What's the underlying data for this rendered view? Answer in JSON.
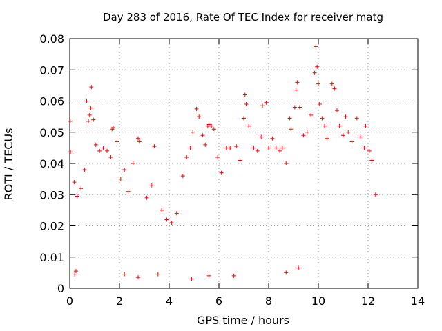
{
  "chart_data": {
    "type": "scatter",
    "title": "Day 283 of 2016, Rate Of TEC Index for receiver matg",
    "xlabel": "GPS time / hours",
    "ylabel": "ROTI / TECUs",
    "xlim": [
      0,
      14
    ],
    "ylim": [
      0,
      0.08
    ],
    "xticks": [
      0,
      2,
      4,
      6,
      8,
      10,
      12,
      14
    ],
    "xtick_labels": [
      "0",
      "2",
      "4",
      "6",
      "8",
      "10",
      "12",
      "14"
    ],
    "yticks": [
      0,
      0.01,
      0.02,
      0.03,
      0.04,
      0.05,
      0.06,
      0.07,
      0.08
    ],
    "ytick_labels": [
      "0",
      "0.01",
      "0.02",
      "0.03",
      "0.04",
      "0.05",
      "0.06",
      "0.07",
      "0.08"
    ],
    "grid": true,
    "marker": "+",
    "series": [
      {
        "name": "ROTI",
        "color": "#ff0000",
        "points": [
          [
            0.02,
            0.0535
          ],
          [
            0.03,
            0.0437
          ],
          [
            0.18,
            0.034
          ],
          [
            0.3,
            0.0295
          ],
          [
            0.45,
            0.032
          ],
          [
            0.6,
            0.038
          ],
          [
            0.68,
            0.06
          ],
          [
            0.75,
            0.0535
          ],
          [
            0.8,
            0.0555
          ],
          [
            0.85,
            0.0578
          ],
          [
            0.87,
            0.0645
          ],
          [
            0.95,
            0.054
          ],
          [
            1.05,
            0.046
          ],
          [
            1.2,
            0.044
          ],
          [
            1.35,
            0.045
          ],
          [
            1.5,
            0.044
          ],
          [
            1.65,
            0.042
          ],
          [
            1.7,
            0.051
          ],
          [
            1.75,
            0.0515
          ],
          [
            1.9,
            0.047
          ],
          [
            2.05,
            0.035
          ],
          [
            2.2,
            0.038
          ],
          [
            2.35,
            0.031
          ],
          [
            2.55,
            0.04
          ],
          [
            2.75,
            0.048
          ],
          [
            2.8,
            0.047
          ],
          [
            3.1,
            0.029
          ],
          [
            3.3,
            0.033
          ],
          [
            3.4,
            0.0455
          ],
          [
            3.7,
            0.025
          ],
          [
            3.9,
            0.022
          ],
          [
            4.1,
            0.021
          ],
          [
            4.3,
            0.024
          ],
          [
            4.55,
            0.036
          ],
          [
            4.7,
            0.042
          ],
          [
            4.85,
            0.045
          ],
          [
            4.95,
            0.05
          ],
          [
            5.1,
            0.0575
          ],
          [
            5.2,
            0.055
          ],
          [
            5.35,
            0.049
          ],
          [
            5.45,
            0.046
          ],
          [
            5.55,
            0.052
          ],
          [
            5.6,
            0.0525
          ],
          [
            5.7,
            0.052
          ],
          [
            5.8,
            0.051
          ],
          [
            5.95,
            0.042
          ],
          [
            6.1,
            0.037
          ],
          [
            6.3,
            0.045
          ],
          [
            6.45,
            0.045
          ],
          [
            6.7,
            0.0455
          ],
          [
            6.85,
            0.041
          ],
          [
            7.0,
            0.0545
          ],
          [
            7.05,
            0.062
          ],
          [
            7.1,
            0.059
          ],
          [
            7.2,
            0.052
          ],
          [
            7.4,
            0.045
          ],
          [
            7.55,
            0.044
          ],
          [
            7.7,
            0.0485
          ],
          [
            7.75,
            0.0585
          ],
          [
            7.9,
            0.0595
          ],
          [
            8.0,
            0.045
          ],
          [
            8.15,
            0.048
          ],
          [
            8.3,
            0.045
          ],
          [
            8.45,
            0.044
          ],
          [
            8.55,
            0.045
          ],
          [
            8.7,
            0.04
          ],
          [
            8.85,
            0.0545
          ],
          [
            8.9,
            0.051
          ],
          [
            9.05,
            0.058
          ],
          [
            9.1,
            0.0635
          ],
          [
            9.15,
            0.066
          ],
          [
            9.25,
            0.058
          ],
          [
            9.4,
            0.049
          ],
          [
            9.55,
            0.05
          ],
          [
            9.7,
            0.0555
          ],
          [
            9.85,
            0.069
          ],
          [
            9.9,
            0.0775
          ],
          [
            9.95,
            0.071
          ],
          [
            10.0,
            0.0655
          ],
          [
            10.05,
            0.059
          ],
          [
            10.15,
            0.0545
          ],
          [
            10.25,
            0.052
          ],
          [
            10.35,
            0.048
          ],
          [
            10.55,
            0.0655
          ],
          [
            10.65,
            0.064
          ],
          [
            10.75,
            0.057
          ],
          [
            10.85,
            0.052
          ],
          [
            11.0,
            0.049
          ],
          [
            11.1,
            0.055
          ],
          [
            11.2,
            0.05
          ],
          [
            11.35,
            0.047
          ],
          [
            11.55,
            0.0545
          ],
          [
            11.7,
            0.0485
          ],
          [
            11.85,
            0.045
          ],
          [
            11.9,
            0.052
          ],
          [
            12.05,
            0.044
          ],
          [
            12.15,
            0.041
          ],
          [
            12.3,
            0.03
          ],
          [
            4.9,
            0.003
          ],
          [
            2.75,
            0.0035
          ],
          [
            3.55,
            0.0045
          ],
          [
            2.2,
            0.0045
          ],
          [
            0.2,
            0.0045
          ],
          [
            5.6,
            0.004
          ],
          [
            6.6,
            0.004
          ],
          [
            8.7,
            0.005
          ],
          [
            9.2,
            0.0065
          ],
          [
            0.25,
            0.0055
          ]
        ]
      }
    ]
  }
}
